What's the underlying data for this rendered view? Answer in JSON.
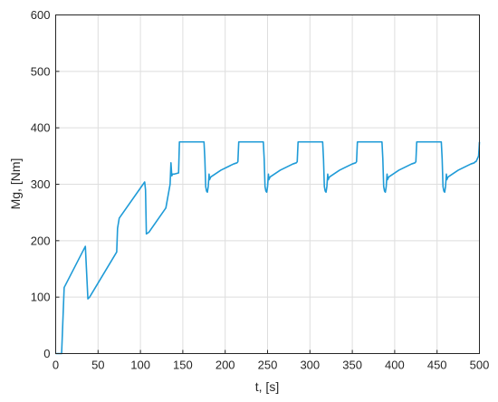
{
  "chart_data": {
    "type": "line",
    "xlabel": "t, [s]",
    "ylabel": "Mg, [Nm]",
    "xlim": [
      0,
      500
    ],
    "ylim": [
      0,
      600
    ],
    "xticks": [
      0,
      50,
      100,
      150,
      200,
      250,
      300,
      350,
      400,
      450,
      500
    ],
    "yticks": [
      0,
      100,
      200,
      300,
      400,
      500,
      600
    ],
    "xtick_labels": [
      "0",
      "50",
      "100",
      "150",
      "200",
      "250",
      "300",
      "350",
      "400",
      "450",
      "500"
    ],
    "ytick_labels": [
      "0",
      "100",
      "200",
      "300",
      "400",
      "500",
      "600"
    ],
    "grid": true,
    "line_color": "#1f9bd7",
    "series": [
      {
        "x": [
          0,
          5,
          7,
          10,
          35,
          38,
          40,
          72,
          73,
          75,
          105,
          106,
          107,
          110,
          130,
          135,
          136,
          137,
          138,
          140,
          145,
          146,
          175,
          176,
          177,
          178,
          179,
          180,
          181,
          181.5,
          183,
          195,
          210,
          214,
          215,
          216,
          220,
          245,
          246,
          247,
          248,
          249,
          250,
          251,
          251.5,
          253,
          265,
          280,
          284,
          285,
          286,
          290,
          315,
          316,
          317,
          318,
          319,
          320,
          321,
          321.5,
          323,
          335,
          350,
          354,
          355,
          356,
          360,
          385,
          386,
          387,
          388,
          389,
          390,
          391,
          391.5,
          393,
          405,
          420,
          424,
          425,
          426,
          430,
          455,
          456,
          457,
          458,
          459,
          460,
          461,
          461.5,
          463,
          475,
          490,
          494,
          495,
          496,
          499,
          500
        ],
        "y": [
          0,
          0,
          0,
          117,
          190,
          97,
          100,
          180,
          222,
          240,
          304,
          290,
          212,
          215,
          258,
          300,
          338,
          315,
          318,
          318,
          320,
          375,
          375,
          345,
          296,
          288,
          286,
          296,
          318,
          308,
          313,
          325,
          336,
          338,
          340,
          375,
          375,
          375,
          345,
          296,
          288,
          286,
          296,
          318,
          308,
          313,
          325,
          336,
          338,
          340,
          375,
          375,
          375,
          345,
          296,
          288,
          286,
          296,
          318,
          308,
          313,
          325,
          336,
          338,
          340,
          375,
          375,
          375,
          345,
          296,
          288,
          286,
          296,
          318,
          308,
          313,
          325,
          336,
          338,
          340,
          375,
          375,
          375,
          345,
          296,
          288,
          286,
          296,
          318,
          308,
          313,
          325,
          336,
          338,
          340,
          340,
          350,
          375
        ]
      }
    ]
  }
}
